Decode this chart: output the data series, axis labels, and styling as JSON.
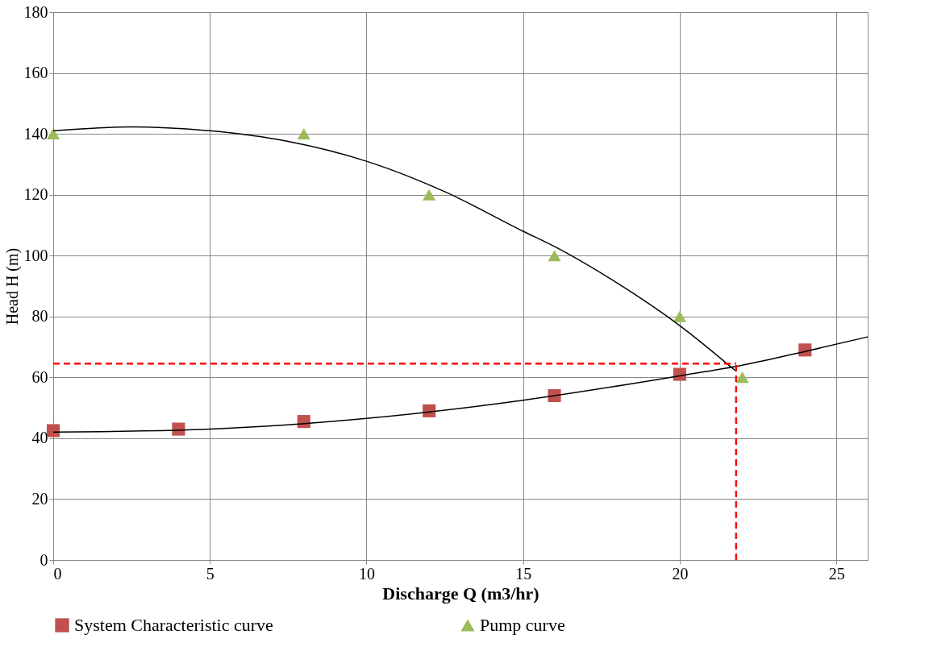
{
  "chart_data": {
    "type": "scatter",
    "xlabel": "Discharge Q (m3/hr)",
    "ylabel": "Head H (m)",
    "xlim": [
      0,
      26
    ],
    "xticks": [
      0,
      5,
      10,
      15,
      20,
      25
    ],
    "ylim": [
      0,
      180
    ],
    "yticks": [
      0,
      20,
      40,
      60,
      80,
      100,
      120,
      140,
      160,
      180
    ],
    "grid": true,
    "legend": "bottom",
    "series": [
      {
        "name": "System Characteristic curve",
        "marker": "square",
        "color": "#c0504d",
        "x": [
          0,
          4,
          8,
          12,
          16,
          20,
          24
        ],
        "values": [
          42.5,
          43,
          45.5,
          49,
          54,
          61,
          69
        ]
      },
      {
        "name": "Pump curve",
        "marker": "triangle",
        "color": "#9bbb59",
        "x": [
          0,
          8,
          12,
          16,
          20,
          22
        ],
        "values": [
          140,
          140,
          120,
          100,
          80,
          60
        ]
      },
      {
        "type": "line",
        "color": "#000000",
        "x": [
          0,
          2.5,
          5,
          7.5,
          10,
          12.5,
          15,
          16,
          18,
          20,
          21.8
        ],
        "values": [
          141,
          142.3,
          141,
          137.5,
          131,
          121,
          108,
          103,
          91,
          77,
          62
        ]
      },
      {
        "type": "line",
        "color": "#000000",
        "x": [
          0,
          5,
          10,
          15,
          20,
          22,
          24,
          26
        ],
        "values": [
          42,
          43,
          46.5,
          52.5,
          60.5,
          64,
          68.5,
          73.3
        ]
      }
    ],
    "ref_lines": [
      {
        "axis": "y",
        "value": 64.5,
        "color": "#ff0000",
        "line_style": "dashed"
      },
      {
        "axis": "x",
        "value": 21.8,
        "color": "#ff0000",
        "line_style": "dashed"
      }
    ]
  }
}
